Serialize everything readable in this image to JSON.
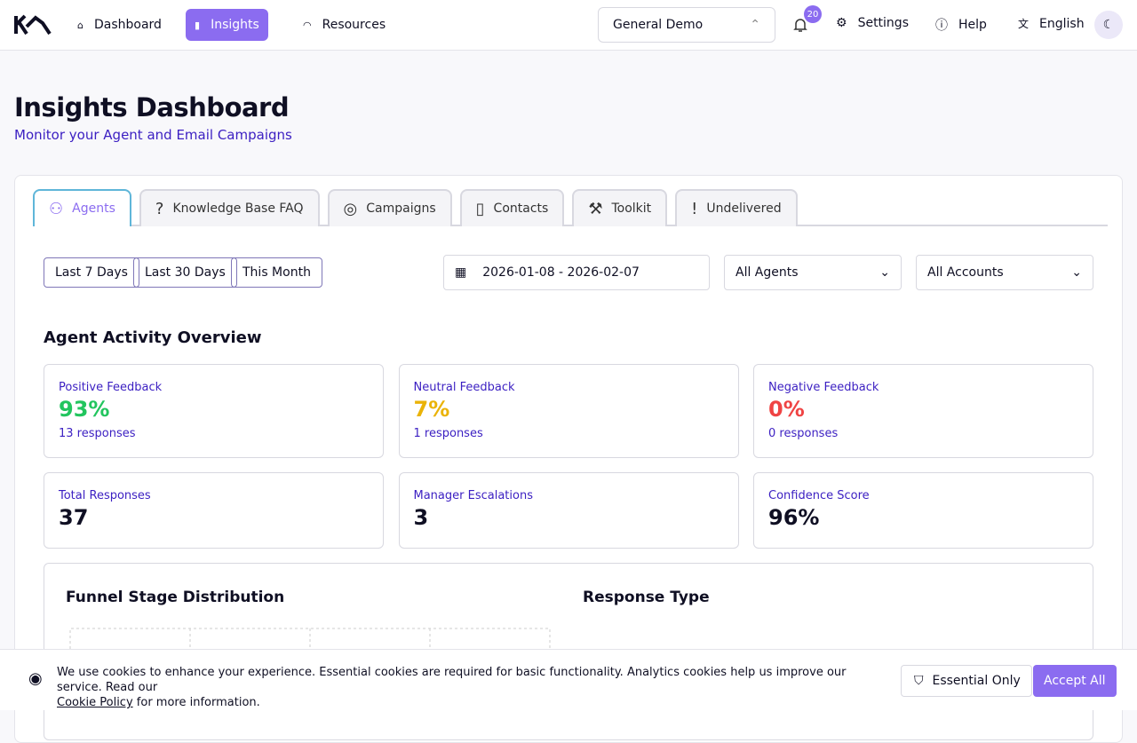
{
  "header": {
    "nav": [
      {
        "label": "Dashboard",
        "active": false
      },
      {
        "label": "Insights",
        "active": true
      },
      {
        "label": "Resources",
        "active": false
      }
    ],
    "workspace": "General Demo",
    "notifications": "20",
    "settings": "Settings",
    "help": "Help",
    "language": "English"
  },
  "page": {
    "title": "Insights Dashboard",
    "subtitle": "Monitor your Agent and Email Campaigns"
  },
  "tabs": [
    "Agents",
    "Knowledge Base FAQ",
    "Campaigns",
    "Contacts",
    "Toolkit",
    "Undelivered"
  ],
  "filters": {
    "ranges": [
      "Last 7 Days",
      "Last 30 Days",
      "This Month"
    ],
    "date_range": "2026-01-08 - 2026-02-07",
    "agents": "All Agents",
    "accounts": "All Accounts"
  },
  "section": {
    "title": "Agent Activity Overview",
    "cards": [
      {
        "label": "Positive Feedback",
        "value": "93%",
        "sub": "13 responses",
        "color": "#22c55e"
      },
      {
        "label": "Neutral Feedback",
        "value": "7%",
        "sub": "1 responses",
        "color": "#eab308"
      },
      {
        "label": "Negative Feedback",
        "value": "0%",
        "sub": "0 responses",
        "color": "#ef4444"
      },
      {
        "label": "Total Responses",
        "value": "37",
        "color": "#0f0f23"
      },
      {
        "label": "Manager Escalations",
        "value": "3",
        "color": "#0f0f23"
      },
      {
        "label": "Confidence Score",
        "value": "96%",
        "color": "#0f0f23"
      }
    ]
  },
  "panels": {
    "funnel": "Funnel Stage Distribution",
    "response": "Response Type"
  },
  "cookie": {
    "text": "We use cookies to enhance your experience. Essential cookies are required for basic functionality. Analytics cookies help us improve our service. Read our",
    "link": "Cookie Policy",
    "after": "for more information.",
    "essential": "Essential Only",
    "accept": "Accept All"
  }
}
